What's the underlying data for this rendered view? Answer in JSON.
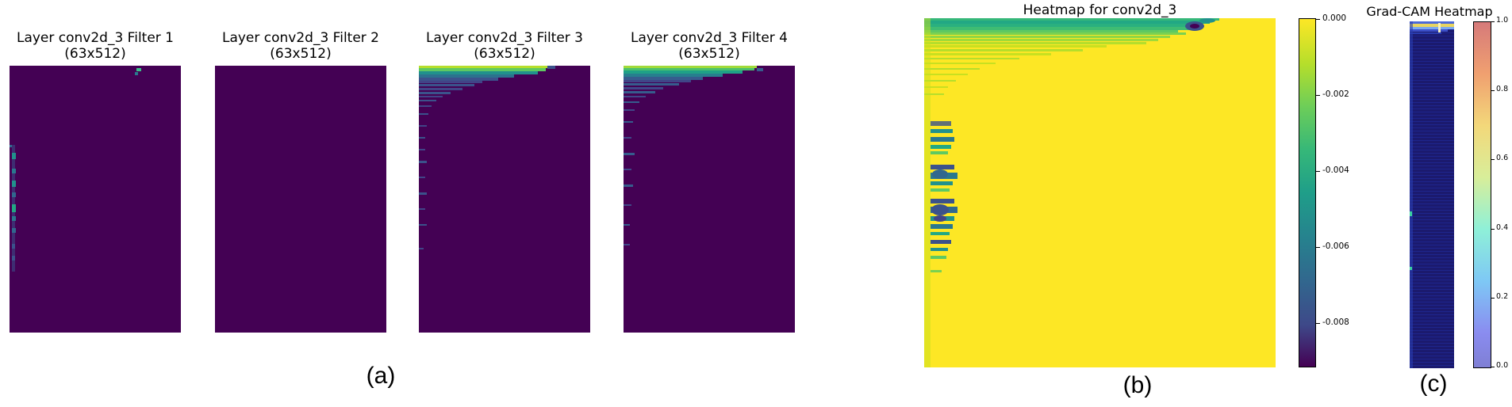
{
  "panel_a": {
    "filters": [
      {
        "title_line1": "Layer conv2d_3 Filter 1",
        "title_line2": "(63x512)"
      },
      {
        "title_line1": "Layer conv2d_3 Filter 2",
        "title_line2": "(63x512)"
      },
      {
        "title_line1": "Layer conv2d_3 Filter 3",
        "title_line2": "(63x512)"
      },
      {
        "title_line1": "Layer conv2d_3 Filter 4",
        "title_line2": "(63x512)"
      }
    ],
    "caption": "(a)"
  },
  "panel_b": {
    "title": "Heatmap for conv2d_3",
    "colorbar_ticks": [
      "0.000",
      "-0.002",
      "-0.004",
      "-0.006",
      "-0.008"
    ],
    "caption": "(b)"
  },
  "panel_c": {
    "title": "Grad-CAM Heatmap",
    "colorbar_ticks": [
      "1.0",
      "0.8",
      "0.6",
      "0.4",
      "0.2",
      "0.0"
    ],
    "caption": "(c)"
  },
  "colors": {
    "viridis_dark": "#440154",
    "viridis_yellow": "#fde725",
    "viridis_green": "#35b779",
    "viridis_teal": "#21918c",
    "viridis_blue": "#3b528b",
    "gradcam_bg": "#1b1a6e"
  }
}
